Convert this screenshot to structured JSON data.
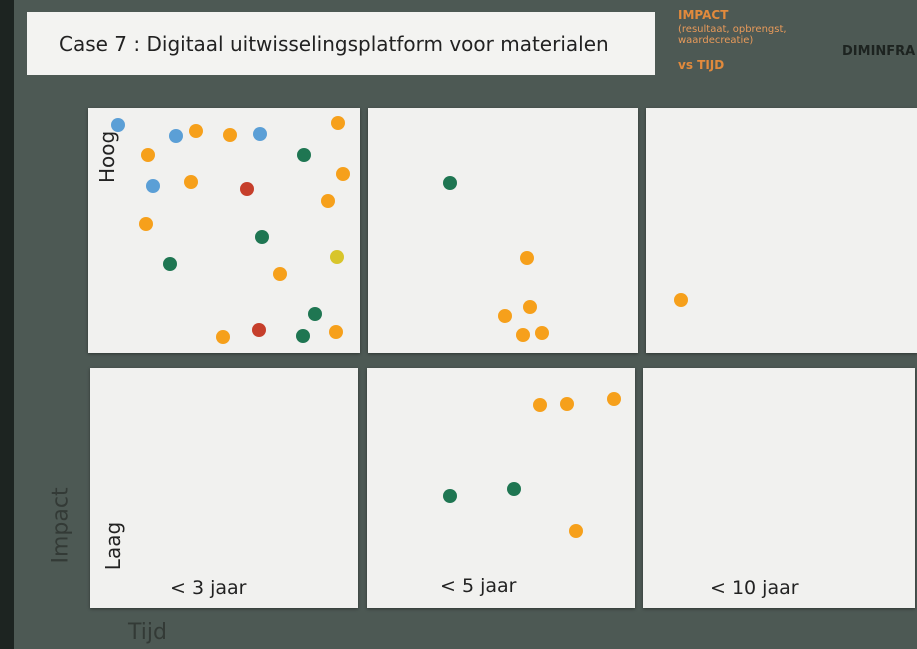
{
  "title": "Case 7 : Digitaal uitwisselingsplatform voor materialen",
  "header": {
    "impact": "IMPACT",
    "impact_note": "(resultaat, opbrengst, waardecreatie)",
    "vs": "vs TIJD",
    "logo": "DIMINFRA"
  },
  "rows": {
    "high": "Hoog",
    "low": "Laag"
  },
  "columns": [
    "< 3 jaar",
    "< 5 jaar",
    "< 10 jaar"
  ],
  "axes": {
    "y": "Impact",
    "x": "Tijd"
  }
}
